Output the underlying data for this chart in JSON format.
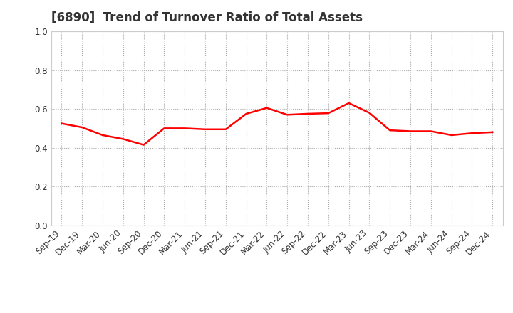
{
  "title": "[6890]  Trend of Turnover Ratio of Total Assets",
  "x_labels": [
    "Sep-19",
    "Dec-19",
    "Mar-20",
    "Jun-20",
    "Sep-20",
    "Dec-20",
    "Mar-21",
    "Jun-21",
    "Sep-21",
    "Dec-21",
    "Mar-22",
    "Jun-22",
    "Sep-22",
    "Dec-22",
    "Mar-23",
    "Jun-23",
    "Sep-23",
    "Dec-23",
    "Mar-24",
    "Jun-24",
    "Sep-24",
    "Dec-24"
  ],
  "y_values": [
    0.525,
    0.505,
    0.465,
    0.445,
    0.415,
    0.5,
    0.5,
    0.495,
    0.495,
    0.575,
    0.605,
    0.57,
    0.575,
    0.578,
    0.63,
    0.58,
    0.49,
    0.485,
    0.485,
    0.465,
    0.475,
    0.48
  ],
  "ylim": [
    0.0,
    1.0
  ],
  "yticks": [
    0.0,
    0.2,
    0.4,
    0.6,
    0.8,
    1.0
  ],
  "line_color": "#FF0000",
  "line_width": 1.8,
  "bg_color": "#FFFFFF",
  "grid_color": "#aaaaaa",
  "title_fontsize": 12,
  "title_color": "#333333",
  "tick_fontsize": 8.5,
  "tick_color": "#333333"
}
